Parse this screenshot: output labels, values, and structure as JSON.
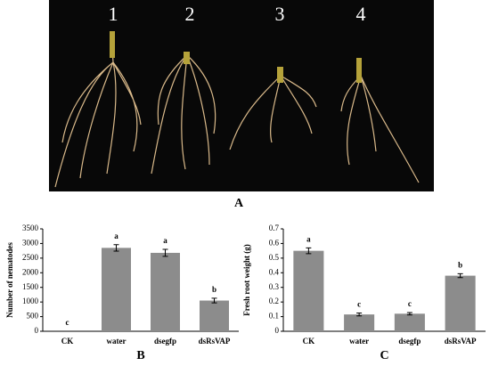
{
  "photo": {
    "labels": [
      "1",
      "2",
      "3",
      "4"
    ],
    "panel_label": "A"
  },
  "chart_data": [
    {
      "type": "bar",
      "panel_label": "B",
      "ylabel": "Number of nematodes",
      "categories": [
        "CK",
        "water",
        "dsegfp",
        "dsRsVAP"
      ],
      "values": [
        0,
        2850,
        2680,
        1050
      ],
      "errors": [
        0,
        110,
        120,
        80
      ],
      "significance": [
        "c",
        "a",
        "a",
        "b"
      ],
      "color": "#8c8c8c",
      "ylim": [
        0,
        3500
      ],
      "yticks": [
        0,
        500,
        1000,
        1500,
        2000,
        2500,
        3000,
        3500
      ]
    },
    {
      "type": "bar",
      "panel_label": "C",
      "ylabel": "Fresh root weight (g)",
      "categories": [
        "CK",
        "water",
        "dsegfp",
        "dsRsVAP"
      ],
      "values": [
        0.55,
        0.115,
        0.12,
        0.38
      ],
      "errors": [
        0.02,
        0.01,
        0.008,
        0.013
      ],
      "significance": [
        "a",
        "c",
        "c",
        "b"
      ],
      "color": "#8c8c8c",
      "ylim": [
        0,
        0.7
      ],
      "yticks": [
        0,
        0.1,
        0.2,
        0.3,
        0.4,
        0.5,
        0.6,
        0.7
      ]
    }
  ]
}
